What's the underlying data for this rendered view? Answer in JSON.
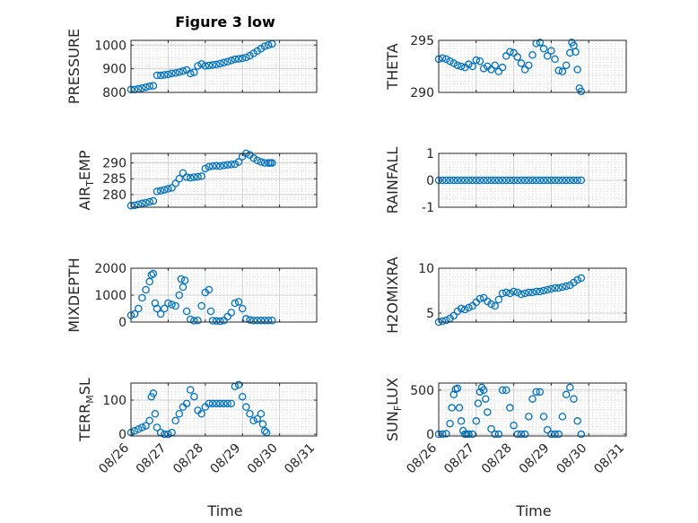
{
  "figure_title": "Figure 3 low",
  "colors": {
    "marker": "#0072BD",
    "axis": "#262626",
    "grid": "#dcdcdc",
    "background": "#ffffff"
  },
  "x_axis": {
    "ticks": [
      "08/26",
      "08/27",
      "08/28",
      "08/29",
      "08/30",
      "08/31"
    ],
    "label": "Time"
  },
  "chart_data": [
    {
      "type": "scatter",
      "ylabel": "PRESSURE",
      "ylim": [
        800,
        1020
      ],
      "yticks": [
        800,
        900,
        1000
      ],
      "xlim": [
        0,
        5
      ],
      "grid": true,
      "x": [
        0,
        0.1,
        0.2,
        0.3,
        0.4,
        0.5,
        0.6,
        0.7,
        0.8,
        0.9,
        1.0,
        1.1,
        1.2,
        1.3,
        1.4,
        1.5,
        1.6,
        1.7,
        1.8,
        1.9,
        2.0,
        2.1,
        2.2,
        2.3,
        2.4,
        2.5,
        2.6,
        2.7,
        2.8,
        2.9,
        3.0,
        3.1,
        3.2,
        3.3,
        3.4,
        3.5,
        3.6,
        3.7,
        3.8
      ],
      "y": [
        812,
        812,
        815,
        818,
        822,
        826,
        828,
        872,
        872,
        874,
        876,
        880,
        882,
        886,
        890,
        895,
        880,
        885,
        912,
        920,
        912,
        914,
        916,
        918,
        922,
        926,
        930,
        935,
        940,
        942,
        944,
        948,
        955,
        965,
        975,
        985,
        995,
        1000,
        1005
      ]
    },
    {
      "type": "scatter",
      "ylabel": "THETA",
      "ylim": [
        290,
        295
      ],
      "yticks": [
        290,
        295
      ],
      "xlim": [
        0,
        5
      ],
      "grid": true,
      "x": [
        0,
        0.1,
        0.2,
        0.3,
        0.4,
        0.5,
        0.6,
        0.7,
        0.8,
        0.9,
        1.0,
        1.1,
        1.2,
        1.3,
        1.4,
        1.5,
        1.6,
        1.7,
        1.8,
        1.9,
        2.0,
        2.1,
        2.2,
        2.3,
        2.4,
        2.5,
        2.6,
        2.7,
        2.8,
        2.9,
        3.0,
        3.1,
        3.2,
        3.3,
        3.4,
        3.5,
        3.55,
        3.6,
        3.65,
        3.7,
        3.75,
        3.8
      ],
      "y": [
        293.2,
        293.3,
        293.2,
        293.0,
        292.8,
        292.6,
        292.5,
        292.4,
        292.7,
        292.5,
        293.1,
        293.0,
        292.3,
        292.5,
        292.2,
        292.6,
        292.0,
        292.4,
        293.5,
        293.9,
        293.8,
        293.4,
        292.8,
        292.2,
        292.6,
        293.6,
        294.7,
        294.8,
        294.2,
        293.5,
        294.0,
        293.2,
        292.1,
        292.0,
        292.6,
        293.8,
        294.8,
        294.5,
        293.9,
        292.2,
        290.4,
        290.1
      ]
    },
    {
      "type": "scatter",
      "ylabel": "AIR_TEMP",
      "ylabel_main": "AIR",
      "ylabel_sub": "T",
      "ylabel_rest": "EMP",
      "ylim": [
        276,
        293
      ],
      "yticks": [
        280,
        285,
        290
      ],
      "xlim": [
        0,
        5
      ],
      "grid": true,
      "x": [
        0,
        0.1,
        0.2,
        0.3,
        0.4,
        0.5,
        0.6,
        0.7,
        0.8,
        0.9,
        1.0,
        1.1,
        1.2,
        1.3,
        1.4,
        1.5,
        1.6,
        1.7,
        1.8,
        1.9,
        2.0,
        2.1,
        2.2,
        2.3,
        2.4,
        2.5,
        2.6,
        2.7,
        2.8,
        2.9,
        3.0,
        3.1,
        3.2,
        3.3,
        3.4,
        3.5,
        3.6,
        3.7,
        3.75,
        3.8
      ],
      "y": [
        276.5,
        276.6,
        276.9,
        277.2,
        277.4,
        277.7,
        278.0,
        281.0,
        281.2,
        281.5,
        281.8,
        282.1,
        283.5,
        285.0,
        286.8,
        285.5,
        285.3,
        285.5,
        285.6,
        285.8,
        288.2,
        288.8,
        289.0,
        289.1,
        289.0,
        289.2,
        289.4,
        289.5,
        289.6,
        290.3,
        292.0,
        293.0,
        292.5,
        291.5,
        290.8,
        290.3,
        290.0,
        290.0,
        290.0,
        290.0
      ]
    },
    {
      "type": "scatter",
      "ylabel": "RAINFALL",
      "ylim": [
        -1,
        1
      ],
      "yticks": [
        -1,
        0,
        1
      ],
      "xlim": [
        0,
        5
      ],
      "grid": true,
      "x": [
        0,
        0.1,
        0.2,
        0.3,
        0.4,
        0.5,
        0.6,
        0.7,
        0.8,
        0.9,
        1.0,
        1.1,
        1.2,
        1.3,
        1.4,
        1.5,
        1.6,
        1.7,
        1.8,
        1.9,
        2.0,
        2.1,
        2.2,
        2.3,
        2.4,
        2.5,
        2.6,
        2.7,
        2.8,
        2.9,
        3.0,
        3.1,
        3.2,
        3.3,
        3.4,
        3.5,
        3.6,
        3.7,
        3.8
      ],
      "y": [
        0,
        0,
        0,
        0,
        0,
        0,
        0,
        0,
        0,
        0,
        0,
        0,
        0,
        0,
        0,
        0,
        0,
        0,
        0,
        0,
        0,
        0,
        0,
        0,
        0,
        0,
        0,
        0,
        0,
        0,
        0,
        0,
        0,
        0,
        0,
        0,
        0,
        0,
        0
      ]
    },
    {
      "type": "scatter",
      "ylabel": "MIXDEPTH",
      "ylim": [
        0,
        2000
      ],
      "yticks": [
        0,
        1000,
        2000
      ],
      "xlim": [
        0,
        5
      ],
      "grid": true,
      "x": [
        0,
        0.1,
        0.2,
        0.3,
        0.4,
        0.5,
        0.55,
        0.6,
        0.65,
        0.7,
        0.8,
        0.9,
        1.0,
        1.1,
        1.2,
        1.3,
        1.35,
        1.4,
        1.45,
        1.5,
        1.6,
        1.7,
        1.8,
        1.9,
        2.0,
        2.1,
        2.15,
        2.2,
        2.3,
        2.4,
        2.5,
        2.6,
        2.7,
        2.8,
        2.9,
        3.0,
        3.1,
        3.2,
        3.3,
        3.4,
        3.5,
        3.6,
        3.7,
        3.8
      ],
      "y": [
        250,
        300,
        500,
        900,
        1200,
        1500,
        1750,
        1800,
        700,
        500,
        300,
        500,
        700,
        650,
        600,
        1000,
        1600,
        1300,
        1550,
        400,
        100,
        50,
        60,
        600,
        1100,
        1200,
        400,
        50,
        40,
        30,
        60,
        200,
        350,
        700,
        750,
        500,
        120,
        80,
        60,
        60,
        60,
        60,
        60,
        60
      ]
    },
    {
      "type": "scatter",
      "ylabel": "H2OMIXRA",
      "ylim": [
        4,
        10
      ],
      "yticks": [
        5,
        10
      ],
      "xlim": [
        0,
        5
      ],
      "grid": true,
      "x": [
        0,
        0.1,
        0.2,
        0.3,
        0.4,
        0.5,
        0.6,
        0.7,
        0.8,
        0.9,
        1.0,
        1.1,
        1.2,
        1.3,
        1.4,
        1.5,
        1.6,
        1.7,
        1.8,
        1.9,
        2.0,
        2.1,
        2.2,
        2.3,
        2.4,
        2.5,
        2.6,
        2.7,
        2.8,
        2.9,
        3.0,
        3.1,
        3.2,
        3.3,
        3.4,
        3.5,
        3.6,
        3.7,
        3.8
      ],
      "y": [
        4.0,
        4.1,
        4.2,
        4.4,
        4.7,
        5.2,
        5.5,
        5.4,
        5.6,
        5.8,
        6.2,
        6.6,
        6.7,
        6.3,
        6.0,
        5.8,
        6.5,
        7.2,
        7.3,
        7.2,
        7.4,
        7.3,
        7.1,
        7.2,
        7.3,
        7.3,
        7.4,
        7.4,
        7.5,
        7.6,
        7.7,
        7.8,
        7.8,
        7.9,
        8.0,
        8.1,
        8.4,
        8.7,
        8.9
      ]
    },
    {
      "type": "scatter",
      "ylabel": "TERR_MSL",
      "ylabel_main": "TERR",
      "ylabel_sub": "M",
      "ylabel_rest": "SL",
      "ylim": [
        -5,
        150
      ],
      "yticks": [
        0,
        100
      ],
      "xlim": [
        0,
        5
      ],
      "grid": true,
      "x": [
        0,
        0.1,
        0.2,
        0.3,
        0.4,
        0.5,
        0.55,
        0.6,
        0.65,
        0.7,
        0.8,
        0.9,
        1.0,
        1.1,
        1.2,
        1.3,
        1.4,
        1.5,
        1.6,
        1.7,
        1.8,
        1.9,
        2.0,
        2.1,
        2.2,
        2.3,
        2.4,
        2.5,
        2.6,
        2.7,
        2.8,
        2.9,
        3.0,
        3.1,
        3.2,
        3.3,
        3.4,
        3.5,
        3.55,
        3.6,
        3.65
      ],
      "y": [
        5,
        10,
        15,
        20,
        25,
        40,
        110,
        120,
        60,
        20,
        5,
        0,
        0,
        5,
        40,
        60,
        80,
        90,
        130,
        110,
        70,
        60,
        80,
        90,
        90,
        90,
        90,
        90,
        90,
        90,
        140,
        145,
        110,
        80,
        60,
        40,
        45,
        60,
        30,
        10,
        5
      ]
    },
    {
      "type": "scatter",
      "ylabel": "SUN_FLUX",
      "ylabel_main": "SUN",
      "ylabel_sub": "F",
      "ylabel_rest": "LUX",
      "ylim": [
        -20,
        580
      ],
      "yticks": [
        0,
        500
      ],
      "xlim": [
        0,
        5
      ],
      "grid": true,
      "x": [
        0,
        0.1,
        0.2,
        0.3,
        0.35,
        0.4,
        0.45,
        0.5,
        0.55,
        0.6,
        0.65,
        0.7,
        0.75,
        0.8,
        0.9,
        1.0,
        1.05,
        1.1,
        1.15,
        1.2,
        1.25,
        1.3,
        1.4,
        1.5,
        1.6,
        1.7,
        1.8,
        1.9,
        2.0,
        2.1,
        2.2,
        2.3,
        2.4,
        2.5,
        2.6,
        2.7,
        2.8,
        2.9,
        3.0,
        3.1,
        3.2,
        3.3,
        3.4,
        3.5,
        3.6,
        3.7,
        3.8
      ],
      "y": [
        0,
        0,
        5,
        120,
        300,
        450,
        510,
        520,
        300,
        150,
        40,
        0,
        0,
        0,
        0,
        150,
        350,
        480,
        530,
        500,
        400,
        250,
        60,
        0,
        0,
        500,
        500,
        300,
        100,
        0,
        0,
        0,
        200,
        400,
        480,
        480,
        200,
        50,
        0,
        0,
        0,
        200,
        450,
        530,
        400,
        150,
        0
      ]
    }
  ]
}
